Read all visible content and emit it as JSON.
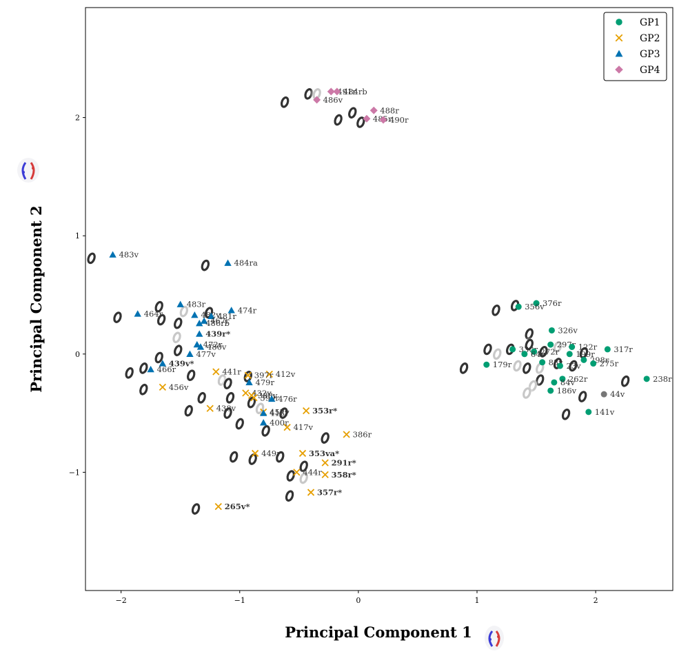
{
  "chart_data": {
    "type": "scatter",
    "xlabel": "Principal Component 1",
    "ylabel": "Principal Component 2",
    "xlim": [
      -2.3,
      2.65
    ],
    "ylim": [
      -2.0,
      2.93
    ],
    "xticks": [
      "-2",
      "-1",
      "0",
      "1",
      "2"
    ],
    "yticks": [
      "-1",
      "0",
      "1",
      "2"
    ],
    "xtick_values": [
      -2,
      -1,
      0,
      1,
      2
    ],
    "ytick_values": [
      -1,
      0,
      1,
      2
    ],
    "legend_position": "top-right",
    "series": [
      {
        "name": "GP1",
        "marker": "circle",
        "color": "#009e73",
        "points": [
          {
            "x": 1.5,
            "y": 0.43,
            "label": "376r"
          },
          {
            "x": 1.35,
            "y": 0.4,
            "label": "356v"
          },
          {
            "x": 1.63,
            "y": 0.2,
            "label": "326v"
          },
          {
            "x": 1.62,
            "y": 0.08,
            "label": "297r"
          },
          {
            "x": 1.8,
            "y": 0.06,
            "label": "122r"
          },
          {
            "x": 2.1,
            "y": 0.04,
            "label": "317r"
          },
          {
            "x": 1.3,
            "y": 0.04,
            "label": "330r"
          },
          {
            "x": 1.48,
            "y": 0.02,
            "label": "272r"
          },
          {
            "x": 1.4,
            "y": 0.0,
            "label": "64r"
          },
          {
            "x": 1.78,
            "y": 0.0,
            "label": "199r"
          },
          {
            "x": 1.9,
            "y": -0.05,
            "label": "298r"
          },
          {
            "x": 1.98,
            "y": -0.08,
            "label": "275r"
          },
          {
            "x": 1.08,
            "y": -0.09,
            "label": "179r"
          },
          {
            "x": 1.55,
            "y": -0.07,
            "label": "83r"
          },
          {
            "x": 1.7,
            "y": -0.1,
            "label": "23v"
          },
          {
            "x": 1.72,
            "y": -0.21,
            "label": "262r"
          },
          {
            "x": 1.65,
            "y": -0.24,
            "label": "84v"
          },
          {
            "x": 1.62,
            "y": -0.31,
            "label": "186v"
          },
          {
            "x": 2.43,
            "y": -0.21,
            "label": "238r"
          },
          {
            "x": 1.94,
            "y": -0.49,
            "label": "141v"
          },
          {
            "x": 2.07,
            "y": -0.34,
            "label": "44v"
          }
        ]
      },
      {
        "name": "GP2",
        "marker": "x",
        "color": "#e69f00",
        "points": [
          {
            "x": -1.2,
            "y": -0.15,
            "label": "441r"
          },
          {
            "x": -0.75,
            "y": -0.17,
            "label": "412v"
          },
          {
            "x": -0.93,
            "y": -0.18,
            "label": "397r"
          },
          {
            "x": -1.65,
            "y": -0.28,
            "label": "456v"
          },
          {
            "x": -0.95,
            "y": -0.33,
            "label": "432v"
          },
          {
            "x": -0.9,
            "y": -0.35,
            "label": "388v"
          },
          {
            "x": -0.88,
            "y": -0.37,
            "label": "399r"
          },
          {
            "x": -1.25,
            "y": -0.46,
            "label": "438v"
          },
          {
            "x": -0.8,
            "y": -0.49,
            "label": "457v"
          },
          {
            "x": -0.44,
            "y": -0.48,
            "label": "353r*"
          },
          {
            "x": -0.6,
            "y": -0.62,
            "label": "417v"
          },
          {
            "x": -0.1,
            "y": -0.68,
            "label": "386r"
          },
          {
            "x": -0.87,
            "y": -0.84,
            "label": "449r"
          },
          {
            "x": -0.47,
            "y": -0.84,
            "label": "353va*"
          },
          {
            "x": -0.28,
            "y": -0.92,
            "label": "291r*"
          },
          {
            "x": -0.52,
            "y": -1.0,
            "label": "444r"
          },
          {
            "x": -0.28,
            "y": -1.02,
            "label": "358r*"
          },
          {
            "x": -0.4,
            "y": -1.17,
            "label": "357r*"
          },
          {
            "x": -1.18,
            "y": -1.29,
            "label": "265v*"
          }
        ]
      },
      {
        "name": "GP3",
        "marker": "triangle",
        "color": "#0072b2",
        "points": [
          {
            "x": -2.07,
            "y": 0.84,
            "label": "483v"
          },
          {
            "x": -1.1,
            "y": 0.77,
            "label": "484ra"
          },
          {
            "x": -1.5,
            "y": 0.42,
            "label": "483r"
          },
          {
            "x": -1.07,
            "y": 0.37,
            "label": "474r"
          },
          {
            "x": -1.86,
            "y": 0.34,
            "label": "464r"
          },
          {
            "x": -1.38,
            "y": 0.33,
            "label": "482v"
          },
          {
            "x": -1.24,
            "y": 0.32,
            "label": "481r"
          },
          {
            "x": -1.3,
            "y": 0.28,
            "label": "467r"
          },
          {
            "x": -1.34,
            "y": 0.26,
            "label": "486rb"
          },
          {
            "x": -1.34,
            "y": 0.17,
            "label": "439r*"
          },
          {
            "x": -1.36,
            "y": 0.08,
            "label": "472r"
          },
          {
            "x": -1.33,
            "y": 0.06,
            "label": "480v"
          },
          {
            "x": -1.42,
            "y": 0.0,
            "label": "477v"
          },
          {
            "x": -1.65,
            "y": -0.08,
            "label": "439v*"
          },
          {
            "x": -1.75,
            "y": -0.13,
            "label": "466r"
          },
          {
            "x": -0.92,
            "y": -0.24,
            "label": "479r"
          },
          {
            "x": -0.73,
            "y": -0.38,
            "label": "476r"
          },
          {
            "x": -0.8,
            "y": -0.5,
            "label": "413r"
          },
          {
            "x": -0.8,
            "y": -0.58,
            "label": "400r"
          }
        ]
      },
      {
        "name": "GP4",
        "marker": "diamond",
        "color": "#cc79a7",
        "points": [
          {
            "x": -0.23,
            "y": 2.22,
            "label": "491r"
          },
          {
            "x": -0.18,
            "y": 2.22,
            "label": "484rb"
          },
          {
            "x": -0.35,
            "y": 2.15,
            "label": "486v"
          },
          {
            "x": 0.13,
            "y": 2.06,
            "label": "488r"
          },
          {
            "x": 0.07,
            "y": 1.99,
            "label": "485r"
          },
          {
            "x": 0.21,
            "y": 1.98,
            "label": "490r"
          }
        ]
      }
    ],
    "glyphs": [
      {
        "x": -0.42,
        "y": 2.2,
        "shade": "dark"
      },
      {
        "x": -0.35,
        "y": 2.2,
        "shade": "light"
      },
      {
        "x": -0.62,
        "y": 2.13,
        "shade": "dark"
      },
      {
        "x": -0.17,
        "y": 1.98,
        "shade": "dark"
      },
      {
        "x": -0.05,
        "y": 2.04,
        "shade": "dark"
      },
      {
        "x": 0.02,
        "y": 1.96,
        "shade": "dark"
      },
      {
        "x": -2.25,
        "y": 0.81,
        "shade": "dark"
      },
      {
        "x": -1.29,
        "y": 0.75,
        "shade": "dark"
      },
      {
        "x": -1.68,
        "y": 0.4,
        "shade": "dark"
      },
      {
        "x": -2.03,
        "y": 0.31,
        "shade": "dark"
      },
      {
        "x": -1.66,
        "y": 0.29,
        "shade": "dark"
      },
      {
        "x": -1.52,
        "y": 0.26,
        "shade": "dark"
      },
      {
        "x": -1.26,
        "y": 0.35,
        "shade": "dark"
      },
      {
        "x": -1.47,
        "y": 0.36,
        "shade": "light"
      },
      {
        "x": -1.53,
        "y": 0.14,
        "shade": "light"
      },
      {
        "x": -1.52,
        "y": 0.03,
        "shade": "dark"
      },
      {
        "x": -1.68,
        "y": -0.03,
        "shade": "dark"
      },
      {
        "x": -1.81,
        "y": -0.12,
        "shade": "dark"
      },
      {
        "x": -1.93,
        "y": -0.16,
        "shade": "dark"
      },
      {
        "x": -1.41,
        "y": -0.18,
        "shade": "dark"
      },
      {
        "x": -1.81,
        "y": -0.3,
        "shade": "dark"
      },
      {
        "x": -1.32,
        "y": -0.37,
        "shade": "dark"
      },
      {
        "x": -1.43,
        "y": -0.48,
        "shade": "dark"
      },
      {
        "x": -1.15,
        "y": -0.22,
        "shade": "light"
      },
      {
        "x": -1.1,
        "y": -0.25,
        "shade": "dark"
      },
      {
        "x": -0.93,
        "y": -0.19,
        "shade": "dark"
      },
      {
        "x": -1.08,
        "y": -0.37,
        "shade": "dark"
      },
      {
        "x": -1.1,
        "y": -0.5,
        "shade": "dark"
      },
      {
        "x": -1.0,
        "y": -0.59,
        "shade": "dark"
      },
      {
        "x": -0.9,
        "y": -0.41,
        "shade": "dark"
      },
      {
        "x": -0.83,
        "y": -0.46,
        "shade": "light"
      },
      {
        "x": -0.63,
        "y": -0.5,
        "shade": "dark"
      },
      {
        "x": -0.78,
        "y": -0.65,
        "shade": "dark"
      },
      {
        "x": -0.28,
        "y": -0.71,
        "shade": "dark"
      },
      {
        "x": -1.05,
        "y": -0.87,
        "shade": "dark"
      },
      {
        "x": -0.89,
        "y": -0.89,
        "shade": "dark"
      },
      {
        "x": -0.66,
        "y": -0.87,
        "shade": "dark"
      },
      {
        "x": -0.46,
        "y": -0.95,
        "shade": "dark"
      },
      {
        "x": -0.57,
        "y": -1.03,
        "shade": "dark"
      },
      {
        "x": -0.46,
        "y": -1.05,
        "shade": "light"
      },
      {
        "x": -0.58,
        "y": -1.2,
        "shade": "dark"
      },
      {
        "x": -1.37,
        "y": -1.31,
        "shade": "dark"
      },
      {
        "x": 1.16,
        "y": 0.37,
        "shade": "dark"
      },
      {
        "x": 1.32,
        "y": 0.41,
        "shade": "dark"
      },
      {
        "x": 1.44,
        "y": 0.17,
        "shade": "dark"
      },
      {
        "x": 1.44,
        "y": 0.08,
        "shade": "dark"
      },
      {
        "x": 1.09,
        "y": 0.04,
        "shade": "dark"
      },
      {
        "x": 1.17,
        "y": 0.0,
        "shade": "light"
      },
      {
        "x": 1.28,
        "y": 0.04,
        "shade": "dark"
      },
      {
        "x": 1.56,
        "y": 0.02,
        "shade": "dark"
      },
      {
        "x": 1.68,
        "y": 0.06,
        "shade": "light"
      },
      {
        "x": 1.9,
        "y": 0.01,
        "shade": "dark"
      },
      {
        "x": 1.34,
        "y": -0.1,
        "shade": "light"
      },
      {
        "x": 1.42,
        "y": -0.12,
        "shade": "dark"
      },
      {
        "x": 1.53,
        "y": -0.12,
        "shade": "light"
      },
      {
        "x": 1.81,
        "y": -0.1,
        "shade": "dark"
      },
      {
        "x": 1.68,
        "y": -0.08,
        "shade": "dark"
      },
      {
        "x": 1.53,
        "y": -0.22,
        "shade": "dark"
      },
      {
        "x": 1.47,
        "y": -0.27,
        "shade": "light"
      },
      {
        "x": 1.42,
        "y": -0.33,
        "shade": "light"
      },
      {
        "x": 1.89,
        "y": -0.36,
        "shade": "dark"
      },
      {
        "x": 1.75,
        "y": -0.51,
        "shade": "dark"
      },
      {
        "x": 2.25,
        "y": -0.23,
        "shade": "dark"
      },
      {
        "x": 0.89,
        "y": -0.12,
        "shade": "dark"
      }
    ]
  }
}
